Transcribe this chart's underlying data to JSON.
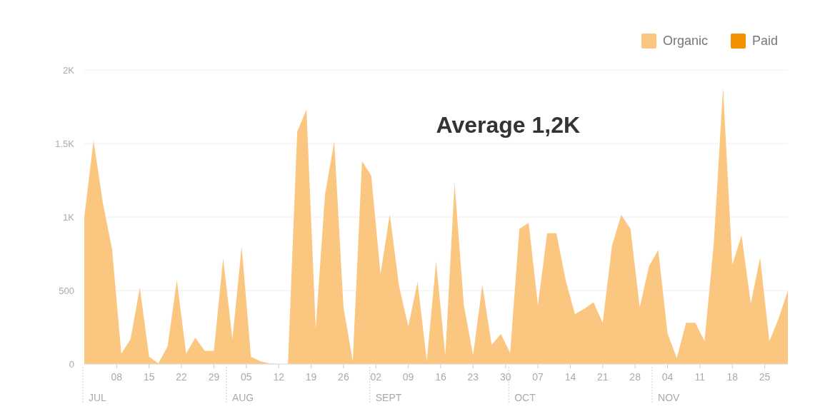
{
  "chart_data": {
    "type": "area",
    "x": [
      "--07-01",
      "--07-03",
      "--07-05",
      "--07-07",
      "--07-09",
      "--07-11",
      "--07-13",
      "--07-15",
      "--07-17",
      "--07-19",
      "--07-21",
      "--07-23",
      "--07-25",
      "--07-27",
      "--07-29",
      "--07-31",
      "--08-02",
      "--08-04",
      "--08-06",
      "--08-08",
      "--08-10",
      "--08-12",
      "--08-14",
      "--08-16",
      "--08-18",
      "--08-20",
      "--08-22",
      "--08-24",
      "--08-26",
      "--08-28",
      "--08-30",
      "--09-01",
      "--09-03",
      "--09-05",
      "--09-07",
      "--09-09",
      "--09-11",
      "--09-13",
      "--09-15",
      "--09-17",
      "--09-19",
      "--09-21",
      "--09-23",
      "--09-25",
      "--09-27",
      "--09-29",
      "--10-01",
      "--10-03",
      "--10-05",
      "--10-07",
      "--10-09",
      "--10-11",
      "--10-13",
      "--10-15",
      "--10-17",
      "--10-19",
      "--10-21",
      "--10-23",
      "--10-25",
      "--10-27",
      "--10-29",
      "--10-31",
      "--11-02",
      "--11-04",
      "--11-06",
      "--11-08",
      "--11-10",
      "--11-12",
      "--11-14",
      "--11-16",
      "--11-18",
      "--11-20",
      "--11-22",
      "--11-24",
      "--11-26",
      "--11-28",
      "--11-30"
    ],
    "series": [
      {
        "name": "Organic",
        "color": "#fbc67f",
        "values": [
          1000,
          1520,
          1100,
          780,
          70,
          170,
          520,
          50,
          5,
          120,
          570,
          70,
          180,
          90,
          90,
          720,
          170,
          800,
          50,
          20,
          5,
          0,
          0,
          1580,
          1730,
          240,
          1150,
          1515,
          385,
          20,
          1380,
          1280,
          610,
          1020,
          530,
          255,
          560,
          20,
          695,
          60,
          1230,
          400,
          60,
          540,
          130,
          205,
          75,
          920,
          960,
          400,
          890,
          890,
          570,
          340,
          375,
          420,
          280,
          805,
          1015,
          920,
          385,
          665,
          775,
          210,
          40,
          280,
          280,
          155,
          820,
          1880,
          675,
          875,
          410,
          725,
          155,
          310,
          500
        ]
      },
      {
        "name": "Paid",
        "color": "#f39200",
        "values": [
          null,
          null,
          null,
          null,
          null,
          null,
          null,
          null,
          null,
          null,
          null,
          null,
          null,
          null,
          null,
          null,
          null,
          null,
          null,
          null,
          null,
          null,
          null,
          null,
          null,
          null,
          null,
          null,
          null,
          null,
          null,
          null,
          null,
          null,
          null,
          null,
          null,
          null,
          null,
          null,
          null,
          null,
          null,
          null,
          null,
          null,
          null,
          null,
          null,
          null,
          null,
          null,
          null,
          null,
          null,
          null,
          null,
          null,
          null,
          null,
          null,
          null,
          null,
          null,
          null,
          null,
          null,
          null,
          null,
          null,
          null,
          null,
          null,
          null,
          null,
          null,
          null
        ]
      }
    ],
    "xlim": [
      "--07-01",
      "--11-30"
    ],
    "xticks": [
      {
        "value": "--07-08",
        "label": "08"
      },
      {
        "value": "--07-15",
        "label": "15"
      },
      {
        "value": "--07-22",
        "label": "22"
      },
      {
        "value": "--07-29",
        "label": "29"
      },
      {
        "value": "--08-05",
        "label": "05"
      },
      {
        "value": "--08-12",
        "label": "12"
      },
      {
        "value": "--08-19",
        "label": "19"
      },
      {
        "value": "--08-26",
        "label": "26"
      },
      {
        "value": "--09-02",
        "label": "02"
      },
      {
        "value": "--09-09",
        "label": "09"
      },
      {
        "value": "--09-16",
        "label": "16"
      },
      {
        "value": "--09-23",
        "label": "23"
      },
      {
        "value": "--09-30",
        "label": "30"
      },
      {
        "value": "--10-07",
        "label": "07"
      },
      {
        "value": "--10-14",
        "label": "14"
      },
      {
        "value": "--10-21",
        "label": "21"
      },
      {
        "value": "--10-28",
        "label": "28"
      },
      {
        "value": "--11-04",
        "label": "04"
      },
      {
        "value": "--11-11",
        "label": "11"
      },
      {
        "value": "--11-18",
        "label": "18"
      },
      {
        "value": "--11-25",
        "label": "25"
      }
    ],
    "ylim": [
      0,
      2000
    ],
    "yticks": [
      0,
      500,
      {
        "value": 1000,
        "label": "1K"
      },
      {
        "value": 1500,
        "label": "1.5K"
      },
      {
        "value": 2000,
        "label": "2K"
      }
    ],
    "grid": "y",
    "legend": "top right",
    "annotations": [
      "Average 1,2K",
      "JUL",
      "AUG",
      "SEPT",
      "OCT",
      "NOV"
    ]
  }
}
